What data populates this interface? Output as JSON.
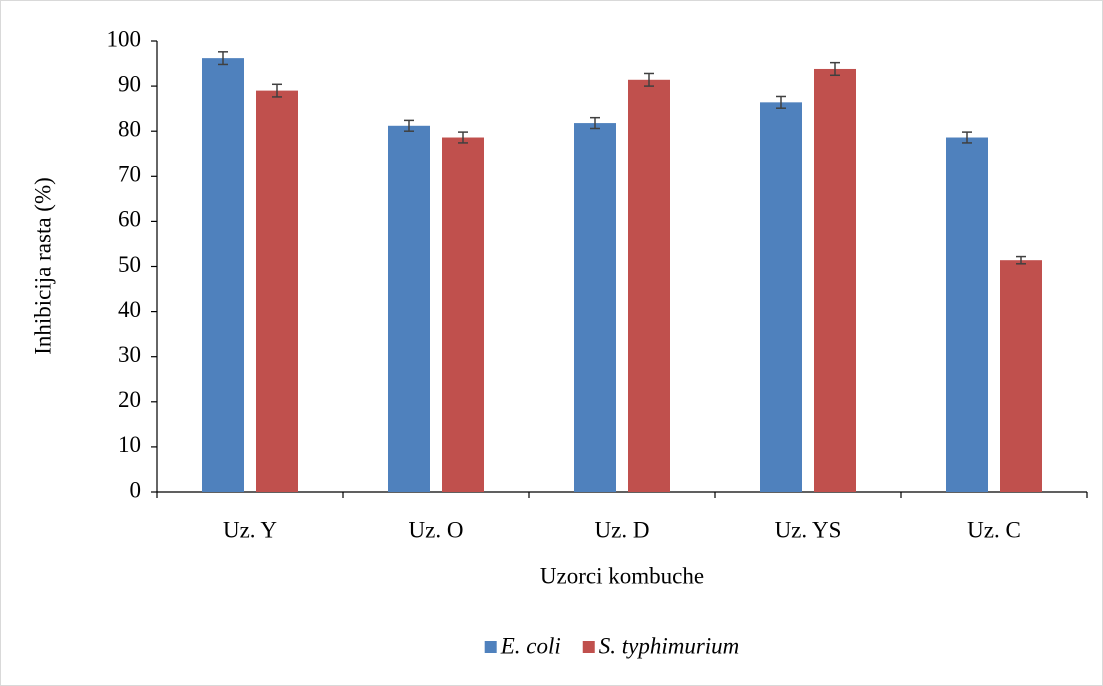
{
  "chart_data": {
    "type": "bar",
    "y_label": "Inhibicija rasta (%)",
    "x_label": "Uzorci kombuche",
    "categories": [
      "Uz. Y",
      "Uz. O",
      "Uz. D",
      "Uz. YS",
      "Uz. C"
    ],
    "series": [
      {
        "name": "E. coli",
        "color": "#4f81bd",
        "values": [
          96.2,
          81.2,
          81.8,
          86.4,
          78.6
        ],
        "errors": [
          1.4,
          1.2,
          1.2,
          1.3,
          1.2
        ]
      },
      {
        "name": "S. typhimurium",
        "color": "#c0504d",
        "values": [
          89.0,
          78.6,
          91.4,
          93.8,
          51.4
        ],
        "errors": [
          1.4,
          1.2,
          1.4,
          1.4,
          0.8
        ]
      }
    ],
    "ylim": [
      0,
      100
    ],
    "yticks": [
      0,
      10,
      20,
      30,
      40,
      50,
      60,
      70,
      80,
      90,
      100
    ],
    "legend": "bottom"
  }
}
